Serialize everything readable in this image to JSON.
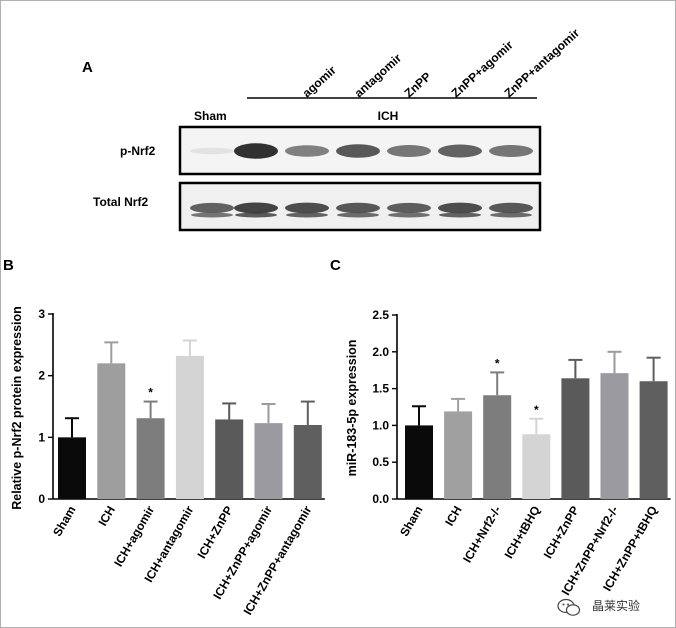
{
  "figure": {
    "border_color": "#b0b0b0",
    "watermark_text": "晶莱实验"
  },
  "panel_a": {
    "label": "A",
    "lane_headers": [
      "agomir",
      "antagomir",
      "ZnPP",
      "ZnPP+agomir",
      "ZnPP+antagomir"
    ],
    "sham_label": "Sham",
    "group_label": "ICH",
    "rows": [
      {
        "label": "p-Nrf2",
        "intensities": [
          0.05,
          0.95,
          0.55,
          0.75,
          0.6,
          0.7,
          0.6
        ]
      },
      {
        "label": "Total Nrf2",
        "intensities": [
          0.7,
          0.85,
          0.8,
          0.75,
          0.72,
          0.8,
          0.75
        ]
      }
    ]
  },
  "chart_data": [
    {
      "type": "bar",
      "panel": "B",
      "ylabel": "Relative p-Nrf2 protein expression",
      "ylim": [
        0,
        3
      ],
      "yticks": [
        "0",
        "1",
        "2",
        "3"
      ],
      "categories": [
        "Sham",
        "ICH",
        "ICH+agomir",
        "ICH+antagomir",
        "ICH+ZnPP",
        "ICH+ZnPP+agomir",
        "ICH+ZnPP+antagomir"
      ],
      "values": [
        1.0,
        2.2,
        1.31,
        2.32,
        1.29,
        1.23,
        1.2
      ],
      "errors": [
        0.31,
        0.34,
        0.27,
        0.25,
        0.26,
        0.31,
        0.38
      ],
      "colors": [
        "#0a0a0a",
        "#9e9e9e",
        "#7d7d7d",
        "#d4d4d4",
        "#5a5a5a",
        "#9a9aa0",
        "#5f5f5f"
      ],
      "annotations": [
        "",
        "",
        "*",
        "",
        "",
        "",
        ""
      ]
    },
    {
      "type": "bar",
      "panel": "C",
      "ylabel": "miR-183-5p expression",
      "ylim": [
        0,
        2.5
      ],
      "yticks": [
        "0.0",
        "0.5",
        "1.0",
        "1.5",
        "2.0",
        "2.5"
      ],
      "categories": [
        "Sham",
        "ICH",
        "ICH+Nrf2-/-",
        "ICH+tBHQ",
        "ICH+ZnPP",
        "ICH+ZnPP+Nrf2-/-",
        "ICH+ZnPP+tBHQ"
      ],
      "values": [
        1.0,
        1.19,
        1.41,
        0.88,
        1.64,
        1.71,
        1.6
      ],
      "errors": [
        0.26,
        0.17,
        0.31,
        0.21,
        0.25,
        0.29,
        0.32
      ],
      "colors": [
        "#0a0a0a",
        "#a0a0a0",
        "#7d7d7d",
        "#d4d4d4",
        "#5a5a5a",
        "#9a9aa0",
        "#5f5f5f"
      ],
      "annotations": [
        "",
        "",
        "*",
        "*",
        "",
        "",
        ""
      ]
    }
  ]
}
